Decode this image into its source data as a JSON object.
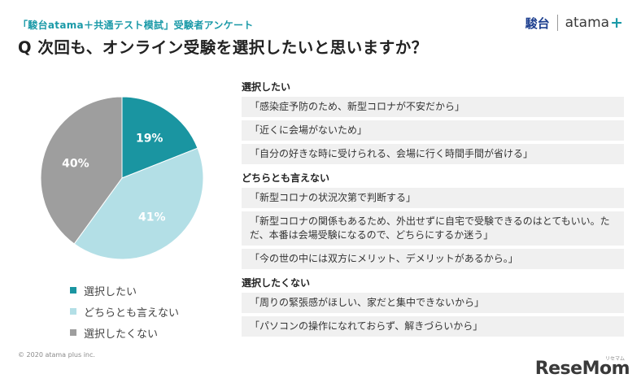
{
  "header": {
    "subtitle": "「駿台atama＋共通テスト模試」受験者アンケート",
    "title": "Q 次回も、オンライン受験を選択したいと思いますか？"
  },
  "logo": {
    "sundai": "駿台",
    "atama": "atama",
    "plus": "+"
  },
  "chart_data": {
    "type": "pie",
    "title": "",
    "categories": [
      "選択したい",
      "どちらとも言えない",
      "選択したくない"
    ],
    "values": [
      19,
      41,
      40
    ],
    "labels": [
      "19%",
      "41%",
      "40%"
    ],
    "colors": [
      "#1a95a1",
      "#b3dfe6",
      "#9e9e9e"
    ],
    "legend_position": "bottom-left"
  },
  "comments": {
    "groups": [
      {
        "heading": "選択したい",
        "items": [
          "「感染症予防のため、新型コロナが不安だから」",
          "「近くに会場がないため」",
          "「自分の好きな時に受けられる、会場に行く時間手間が省ける」"
        ]
      },
      {
        "heading": "どちらとも言えない",
        "items": [
          "「新型コロナの状況次第で判断する」",
          "「新型コロナの関係もあるため、外出せずに自宅で受験できるのはとてもいい。ただ、本番は会場受験になるので、どちらにするか迷う」",
          "「今の世の中には双方にメリット、デメリットがあるから。」"
        ]
      },
      {
        "heading": "選択したくない",
        "items": [
          "「周りの緊張感がほしい、家だと集中できないから」",
          "「パソコンの操作になれておらず、解きづらいから」"
        ]
      }
    ]
  },
  "footer": {
    "copyright": "© 2020 atama plus inc.",
    "watermark": "ReseMom",
    "watermark_small": "リセマム"
  }
}
